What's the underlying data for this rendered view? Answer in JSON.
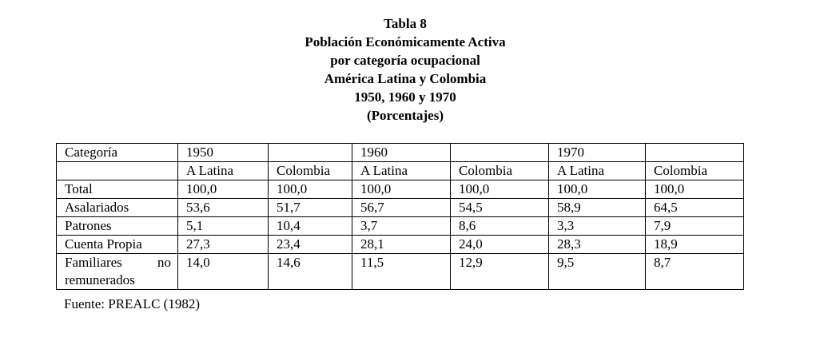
{
  "header": {
    "title": [
      "Tabla 8",
      "Población Económicamente Activa",
      "por categoría ocupacional",
      "América Latina y Colombia",
      "1950, 1960 y 1970",
      "(Porcentajes)"
    ]
  },
  "table": {
    "category_header": "Categoría",
    "years": [
      "1950",
      "1960",
      "1970"
    ],
    "subheaders": [
      "A Latina",
      "Colombia",
      "A Latina",
      "Colombia",
      "A Latina",
      "Colombia"
    ],
    "rows": [
      [
        "Total",
        "100,0",
        "100,0",
        "100,0",
        "100,0",
        "100,0",
        "100,0"
      ],
      [
        "Asalariados",
        "53,6",
        "51,7",
        "56,7",
        "54,5",
        "58,9",
        "64,5"
      ],
      [
        "Patrones",
        "5,1",
        "10,4",
        "3,7",
        "8,6",
        "3,3",
        "7,9"
      ],
      [
        "Cuenta Propia",
        "27,3",
        "23,4",
        "28,1",
        "24,0",
        "28,3",
        "18,9"
      ],
      [
        "Familiares no remunerados",
        "14,0",
        "14,6",
        "11,5",
        "12,9",
        "9,5",
        "8,7"
      ]
    ]
  },
  "footer": {
    "source": "Fuente: PREALC (1982)"
  }
}
